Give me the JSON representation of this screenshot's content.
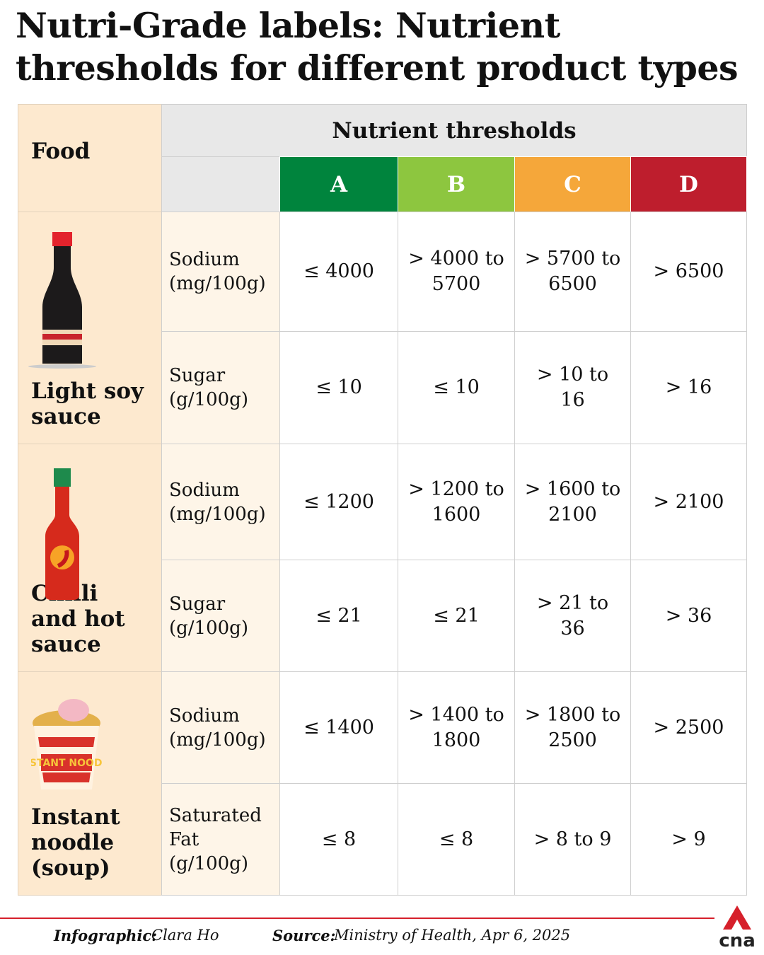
{
  "title": "Nutri-Grade labels: Nutrient thresholds for different product types",
  "table": {
    "food_header": "Food",
    "thresholds_header": "Nutrient thresholds",
    "grades": [
      "A",
      "B",
      "C",
      "D"
    ],
    "foods": [
      {
        "name": "Light soy sauce",
        "rows": [
          {
            "nutrient": "Sodium (mg/100g)",
            "values": [
              "≤ 4000",
              "> 4000 to 5700",
              "> 5700 to 6500",
              "> 6500"
            ]
          },
          {
            "nutrient": "Sugar (g/100g)",
            "values": [
              "≤ 10",
              "≤ 10",
              "> 10 to 16",
              "> 16"
            ]
          }
        ]
      },
      {
        "name": "Chilli and hot sauce",
        "rows": [
          {
            "nutrient": "Sodium (mg/100g)",
            "values": [
              "≤ 1200",
              "> 1200 to 1600",
              "> 1600 to 2100",
              "> 2100"
            ]
          },
          {
            "nutrient": "Sugar (g/100g)",
            "values": [
              "≤ 21",
              "≤ 21",
              "> 21 to 36",
              "> 36"
            ]
          }
        ]
      },
      {
        "name": "Instant noodle (soup)",
        "rows": [
          {
            "nutrient": "Sodium (mg/100g)",
            "values": [
              "≤ 1400",
              "> 1400 to 1800",
              "> 1800 to 2500",
              "> 2500"
            ]
          },
          {
            "nutrient": "Saturated Fat (g/100g)",
            "values": [
              "≤ 8",
              "≤ 8",
              "> 8 to 9",
              "> 9"
            ]
          }
        ]
      }
    ]
  },
  "footer": {
    "credit_label": "Infographic:",
    "credit": "Clara Ho",
    "source_label": "Source:",
    "source": "Ministry of Health, Apr 6, 2025",
    "logo": "cna"
  }
}
